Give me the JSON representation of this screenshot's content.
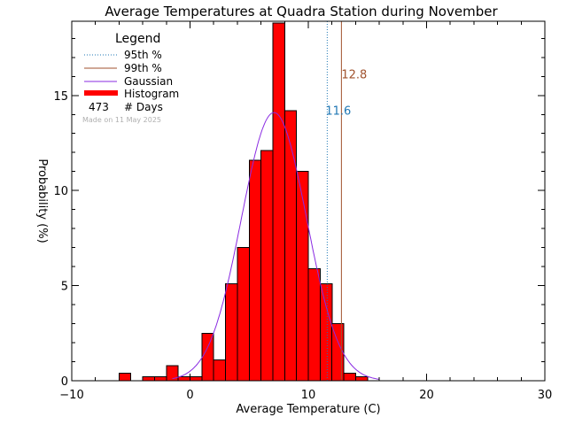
{
  "chart_data": {
    "type": "bar",
    "title": "Average Temperatures at Quadra Station during November",
    "xlabel": "Average Temperature (C)",
    "ylabel": "Probability (%)",
    "xlim": [
      -10,
      30
    ],
    "ylim": [
      0,
      18.9
    ],
    "x_ticks": [
      -10,
      0,
      10,
      20,
      30
    ],
    "y_ticks": [
      0,
      5,
      10,
      15
    ],
    "bin_width": 1,
    "bars": [
      {
        "x0": -6,
        "value": 0.4
      },
      {
        "x0": -4,
        "value": 0.2
      },
      {
        "x0": -3,
        "value": 0.2
      },
      {
        "x0": -2,
        "value": 0.8
      },
      {
        "x0": -1,
        "value": 0.2
      },
      {
        "x0": 0,
        "value": 0.2
      },
      {
        "x0": 1,
        "value": 2.5
      },
      {
        "x0": 2,
        "value": 1.1
      },
      {
        "x0": 3,
        "value": 5.1
      },
      {
        "x0": 4,
        "value": 7.0
      },
      {
        "x0": 5,
        "value": 11.6
      },
      {
        "x0": 6,
        "value": 12.1
      },
      {
        "x0": 7,
        "value": 18.8
      },
      {
        "x0": 8,
        "value": 14.2
      },
      {
        "x0": 9,
        "value": 11.0
      },
      {
        "x0": 10,
        "value": 5.9
      },
      {
        "x0": 11,
        "value": 5.1
      },
      {
        "x0": 12,
        "value": 3.0
      },
      {
        "x0": 13,
        "value": 0.4
      },
      {
        "x0": 14,
        "value": 0.2
      }
    ],
    "gaussian": {
      "mean": 7.1,
      "sigma": 2.75,
      "peak": 14.1
    },
    "percentile_95": {
      "value": 11.6,
      "label": "11.6",
      "color": "#1f77b4"
    },
    "percentile_99": {
      "value": 12.8,
      "label": "12.8",
      "color": "#a0522d"
    },
    "colors": {
      "bar_fill": "#ff0000",
      "gaussian": "#8a2be2",
      "p95": "#1f77b4",
      "p99": "#a0522d"
    }
  },
  "legend": {
    "title": "Legend",
    "items": [
      {
        "label": "95th %",
        "style": "dotted",
        "color": "#1f77b4"
      },
      {
        "label": "99th %",
        "style": "solid",
        "color": "#a0522d"
      },
      {
        "label": "Gaussian",
        "style": "solid",
        "color": "#8a2be2"
      },
      {
        "label": "Histogram",
        "style": "thick",
        "color": "#ff0000"
      }
    ],
    "days_count": "473",
    "days_label": "# Days"
  },
  "made_on": "Made on 11 May 2025"
}
